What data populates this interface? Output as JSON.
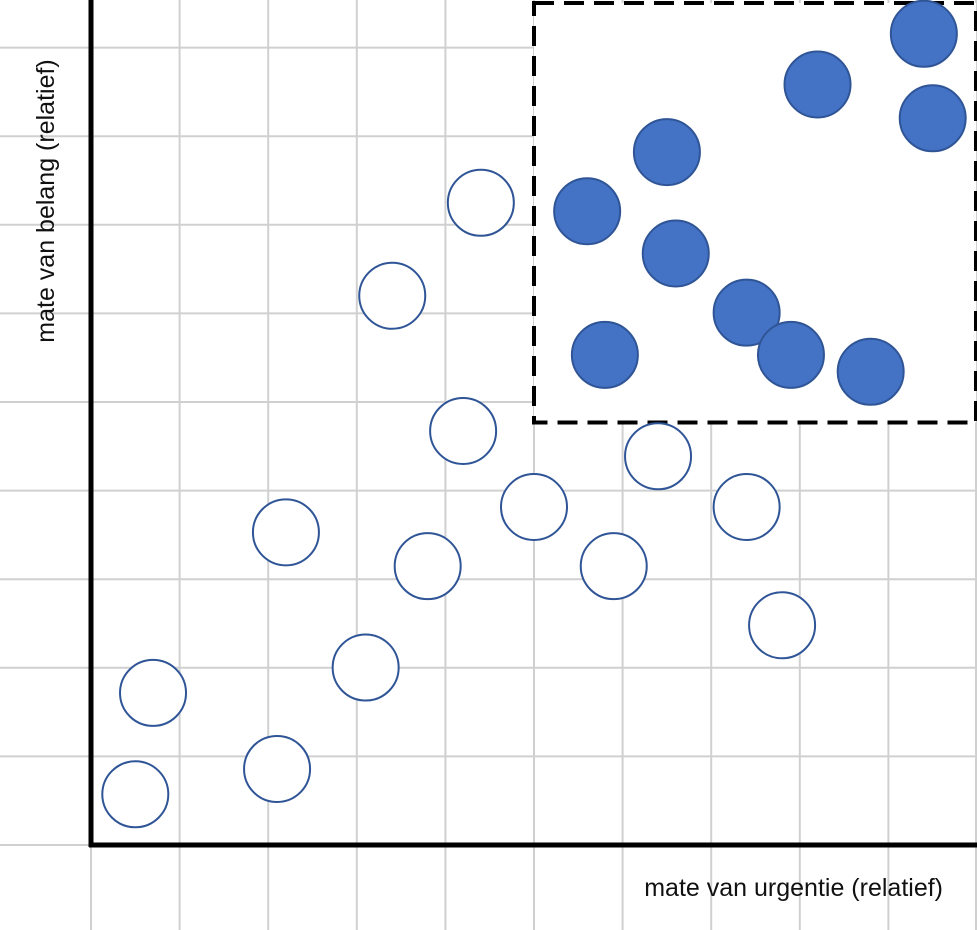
{
  "chart_data": {
    "type": "scatter",
    "xlabel": "mate van urgentie (relatief)",
    "ylabel": "mate van belang (relatief)",
    "xlim": [
      0,
      10
    ],
    "ylim": [
      0,
      10
    ],
    "grid": true,
    "colors": {
      "grid": "#d0d0d0",
      "axis": "#000000",
      "marker_stroke": "#2f5597",
      "marker_filled": "#4472c4",
      "marker_open": "#ffffff",
      "highlight_border": "#000000"
    },
    "highlight_region": {
      "x": [
        5,
        10
      ],
      "y": [
        5,
        10
      ],
      "style": "dashed"
    },
    "series": [
      {
        "style": "filled",
        "points": [
          [
            9.4,
            9.6
          ],
          [
            8.2,
            9.0
          ],
          [
            9.5,
            8.6
          ],
          [
            6.5,
            8.2
          ],
          [
            5.6,
            7.5
          ],
          [
            6.6,
            7.0
          ],
          [
            7.4,
            6.3
          ],
          [
            5.8,
            5.8
          ],
          [
            7.9,
            5.8
          ],
          [
            8.8,
            5.6
          ]
        ]
      },
      {
        "style": "open",
        "points": [
          [
            4.4,
            7.6
          ],
          [
            3.4,
            6.5
          ],
          [
            4.2,
            4.9
          ],
          [
            6.4,
            4.6
          ],
          [
            5.0,
            4.0
          ],
          [
            7.4,
            4.0
          ],
          [
            2.2,
            3.7
          ],
          [
            3.8,
            3.3
          ],
          [
            5.9,
            3.3
          ],
          [
            7.8,
            2.6
          ],
          [
            3.1,
            2.1
          ],
          [
            0.7,
            1.8
          ],
          [
            2.1,
            0.9
          ],
          [
            0.5,
            0.6
          ]
        ]
      }
    ]
  }
}
